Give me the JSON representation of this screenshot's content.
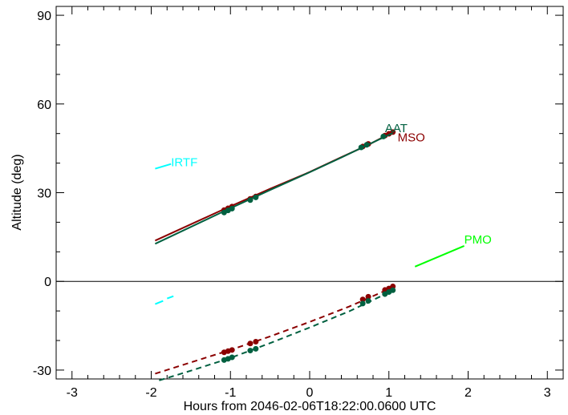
{
  "chart_data": {
    "type": "line",
    "xlabel": "Hours from 2046-02-06T18:22:00.0600 UTC",
    "ylabel": "Altitude (deg)",
    "xlim": [
      -3.2,
      3.2
    ],
    "ylim": [
      -33,
      93
    ],
    "xticks": [
      -3,
      -2,
      -1,
      0,
      1,
      2,
      3
    ],
    "yticks": [
      -30,
      0,
      30,
      60,
      90
    ],
    "grid": false,
    "reference_line_y": 0,
    "series": [
      {
        "name": "IRTF",
        "color": "#00ffff",
        "label_at": [
          -1.75,
          39
        ],
        "segments": [
          {
            "style": "solid",
            "points": [
              [
                -1.95,
                38.1
              ],
              [
                -1.75,
                39.7
              ]
            ]
          },
          {
            "style": "solid",
            "points": [
              [
                -1.95,
                -7.7
              ],
              [
                -1.85,
                -6.6
              ]
            ]
          },
          {
            "style": "solid",
            "points": [
              [
                -1.8,
                -5.8
              ],
              [
                -1.72,
                -5.0
              ]
            ]
          }
        ],
        "markers": []
      },
      {
        "name": "PMO",
        "color": "#00ff00",
        "label_at": [
          1.95,
          12.8
        ],
        "segments": [
          {
            "style": "solid",
            "points": [
              [
                1.33,
                5.0
              ],
              [
                1.95,
                12.0
              ]
            ]
          }
        ],
        "markers": []
      },
      {
        "name": "MSO",
        "color": "#8b0000",
        "label_at": [
          1.11,
          47.3
        ],
        "segments": [
          {
            "style": "solid",
            "points": [
              [
                -1.95,
                13.8
              ],
              [
                -1.1,
                24.2
              ],
              [
                -0.5,
                31.3
              ],
              [
                0.0,
                37.0
              ],
              [
                0.4,
                42.0
              ],
              [
                0.75,
                46.3
              ],
              [
                1.05,
                50.5
              ]
            ]
          },
          {
            "style": "dashed",
            "points": [
              [
                -1.95,
                -31.2
              ],
              [
                -1.5,
                -27.4
              ],
              [
                -1.0,
                -23.2
              ],
              [
                -0.5,
                -18.6
              ],
              [
                0.0,
                -13.7
              ],
              [
                0.5,
                -8.5
              ],
              [
                1.05,
                -2.0
              ]
            ]
          }
        ],
        "markers": [
          [
            -1.08,
            24.1
          ],
          [
            -1.03,
            24.7
          ],
          [
            -0.98,
            25.3
          ],
          [
            -0.75,
            27.9
          ],
          [
            -0.68,
            28.7
          ],
          [
            0.67,
            45.6
          ],
          [
            0.74,
            46.5
          ],
          [
            0.95,
            49.3
          ],
          [
            1.0,
            49.9
          ],
          [
            1.05,
            50.5
          ],
          [
            -1.08,
            -24.0
          ],
          [
            -1.03,
            -23.6
          ],
          [
            -0.98,
            -23.2
          ],
          [
            -0.75,
            -21.0
          ],
          [
            -0.68,
            -20.4
          ],
          [
            0.67,
            -6.1
          ],
          [
            0.74,
            -5.2
          ],
          [
            0.95,
            -2.9
          ],
          [
            1.0,
            -2.4
          ],
          [
            1.05,
            -1.7
          ]
        ]
      },
      {
        "name": "AAT",
        "color": "#006040",
        "label_at": [
          0.95,
          50.5
        ],
        "segments": [
          {
            "style": "solid",
            "points": [
              [
                -1.95,
                12.7
              ],
              [
                -1.1,
                23.5
              ],
              [
                -0.5,
                30.9
              ],
              [
                0.0,
                36.9
              ],
              [
                0.4,
                41.9
              ],
              [
                0.75,
                46.4
              ],
              [
                1.05,
                50.2
              ]
            ]
          },
          {
            "style": "dashed",
            "points": [
              [
                -1.9,
                -33.5
              ],
              [
                -1.5,
                -30.2
              ],
              [
                -1.0,
                -25.9
              ],
              [
                -0.5,
                -20.9
              ],
              [
                0.0,
                -15.6
              ],
              [
                0.5,
                -10.1
              ],
              [
                1.05,
                -3.1
              ]
            ]
          }
        ],
        "markers": [
          [
            -1.08,
            23.3
          ],
          [
            -1.03,
            24.0
          ],
          [
            -0.98,
            24.6
          ],
          [
            -0.75,
            27.5
          ],
          [
            -0.68,
            28.4
          ],
          [
            0.65,
            45.3
          ],
          [
            0.72,
            46.2
          ],
          [
            0.93,
            49.0
          ],
          [
            -1.08,
            -26.6
          ],
          [
            -1.03,
            -26.2
          ],
          [
            -0.98,
            -25.7
          ],
          [
            -0.75,
            -23.4
          ],
          [
            -0.68,
            -22.8
          ],
          [
            0.67,
            -7.5
          ],
          [
            0.74,
            -6.6
          ],
          [
            0.95,
            -4.3
          ],
          [
            1.0,
            -3.6
          ],
          [
            1.05,
            -3.0
          ]
        ]
      }
    ]
  }
}
